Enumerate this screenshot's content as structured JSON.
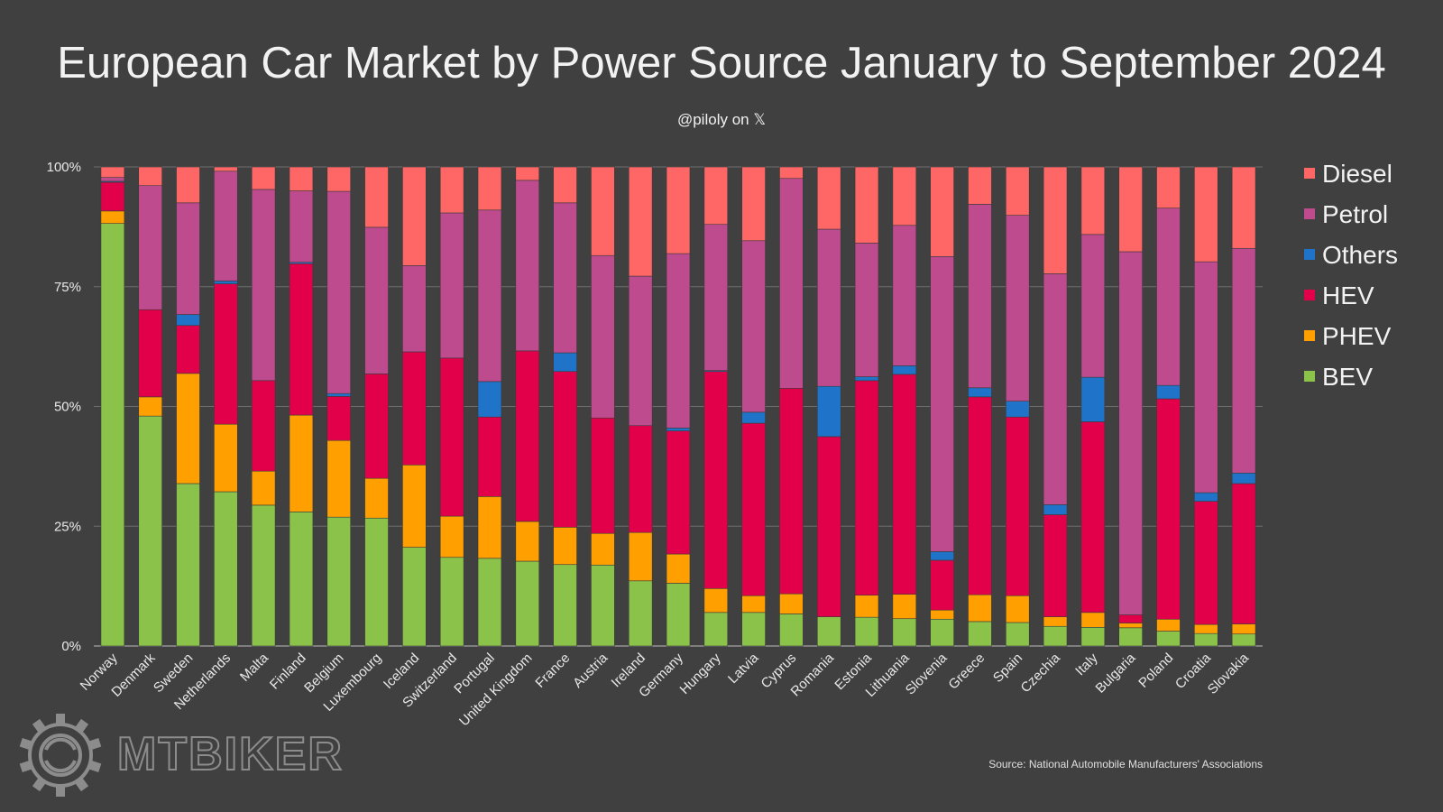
{
  "chart_data": {
    "type": "bar",
    "stacked": true,
    "title": "European Car Market by Power Source January to September 2024",
    "subtitle": "@piloly on 𝕏",
    "source": "Source: National Automobile Manufacturers' Associations",
    "ylim": [
      0,
      100
    ],
    "yticks": [
      "0%",
      "25%",
      "50%",
      "75%",
      "100%"
    ],
    "ytick_values": [
      0,
      25,
      50,
      75,
      100
    ],
    "legend_position": "right",
    "categories": [
      "Norway",
      "Denmark",
      "Sweden",
      "Netherlands",
      "Malta",
      "Finland",
      "Belgium",
      "Luxembourg",
      "Iceland",
      "Switzerland",
      "Portugal",
      "United Kingdom",
      "France",
      "Austria",
      "Ireland",
      "Germany",
      "Hungary",
      "Latvia",
      "Cyprus",
      "Romania",
      "Estonia",
      "Lithuania",
      "Slovenia",
      "Greece",
      "Spain",
      "Czechia",
      "Italy",
      "Bulgaria",
      "Poland",
      "Croatia",
      "Slovakia"
    ],
    "series": [
      {
        "name": "BEV",
        "color": "#8bc34a",
        "values": [
          88.2,
          48.0,
          33.9,
          32.2,
          29.4,
          28.0,
          26.9,
          26.7,
          20.6,
          18.5,
          18.3,
          17.7,
          17.0,
          16.9,
          13.6,
          13.1,
          7.0,
          7.0,
          6.7,
          6.1,
          6.0,
          5.7,
          5.6,
          5.1,
          4.9,
          4.1,
          3.9,
          3.8,
          3.1,
          2.6,
          2.5
        ]
      },
      {
        "name": "PHEV",
        "color": "#ffa000",
        "values": [
          2.6,
          4.0,
          23.0,
          14.1,
          7.1,
          20.2,
          16.0,
          8.3,
          17.2,
          8.6,
          12.9,
          8.3,
          7.8,
          6.6,
          10.1,
          6.1,
          5.0,
          3.5,
          4.2,
          0.0,
          4.6,
          5.1,
          1.9,
          5.6,
          5.6,
          2.0,
          3.1,
          1.0,
          2.5,
          1.9,
          2.1
        ]
      },
      {
        "name": "HEV",
        "color": "#e3004a",
        "values": [
          6.0,
          18.2,
          10.0,
          29.3,
          18.9,
          31.6,
          9.2,
          21.8,
          23.6,
          33.0,
          16.6,
          35.6,
          32.5,
          24.1,
          22.3,
          25.7,
          45.3,
          36.0,
          42.9,
          37.6,
          44.8,
          45.9,
          10.4,
          41.3,
          37.3,
          21.3,
          39.8,
          1.7,
          46.0,
          25.7,
          29.3
        ]
      },
      {
        "name": "Others",
        "color": "#1f74c9",
        "values": [
          0.2,
          0.0,
          2.3,
          0.6,
          0.0,
          0.3,
          0.6,
          0.0,
          0.0,
          0.0,
          7.4,
          0.0,
          3.9,
          0.0,
          0.0,
          0.6,
          0.2,
          2.3,
          0.0,
          10.5,
          0.8,
          1.8,
          1.8,
          1.9,
          3.3,
          2.1,
          9.3,
          0.0,
          2.8,
          1.8,
          2.2
        ]
      },
      {
        "name": "Petrol",
        "color": "#bf4b8f",
        "values": [
          0.8,
          25.9,
          23.3,
          22.9,
          39.9,
          14.9,
          42.2,
          30.6,
          18.0,
          30.3,
          35.8,
          35.6,
          31.3,
          33.9,
          31.2,
          36.4,
          30.5,
          35.8,
          43.8,
          32.8,
          27.9,
          29.3,
          61.6,
          38.3,
          38.8,
          48.2,
          29.8,
          75.8,
          37.0,
          48.2,
          46.9
        ]
      },
      {
        "name": "Diesel",
        "color": "#ff6666",
        "values": [
          2.2,
          3.9,
          7.5,
          0.9,
          4.7,
          5.0,
          5.1,
          12.6,
          20.6,
          9.6,
          9.0,
          2.8,
          7.5,
          18.5,
          22.8,
          18.1,
          12.0,
          15.4,
          2.4,
          13.0,
          15.9,
          12.2,
          18.7,
          7.8,
          10.1,
          22.3,
          14.1,
          17.7,
          8.6,
          19.8,
          17.0
        ]
      }
    ],
    "legend_order": [
      "Diesel",
      "Petrol",
      "Others",
      "HEV",
      "PHEV",
      "BEV"
    ],
    "gridline_color": "#6e6e6e"
  },
  "watermark": {
    "brand": "MTBIKER"
  }
}
